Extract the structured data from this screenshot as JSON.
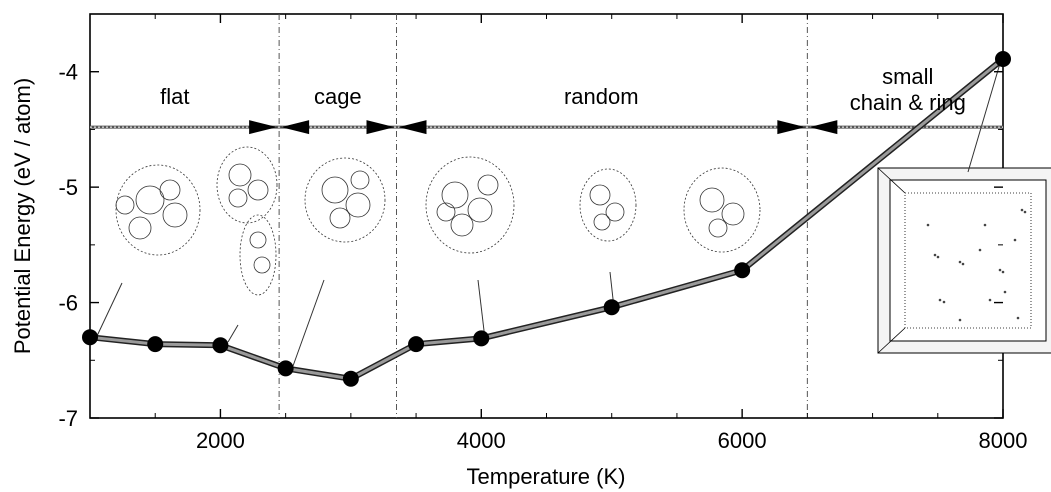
{
  "chart_data": {
    "type": "line",
    "xlabel": "Temperature (K)",
    "ylabel": "Potential Energy (eV / atom)",
    "xlim": [
      1000,
      8000
    ],
    "ylim": [
      -7,
      -3.5
    ],
    "xticks": [
      2000,
      4000,
      6000,
      8000
    ],
    "xtick_labels": [
      "2000",
      "4000",
      "6000",
      "8000"
    ],
    "yticks": [
      -7,
      -6,
      -5,
      -4
    ],
    "ytick_labels": [
      "-7",
      "-6",
      "-5",
      "-4"
    ],
    "grid": false,
    "series": [
      {
        "x": [
          1000,
          1500,
          2000,
          2500,
          3000,
          3500,
          4000,
          5000,
          6000,
          8000
        ],
        "y": [
          -6.3,
          -6.36,
          -6.37,
          -6.57,
          -6.66,
          -6.36,
          -6.31,
          -6.04,
          -5.72,
          -3.89
        ]
      }
    ],
    "phase_boundaries": [
      2450,
      3350,
      6500
    ],
    "phase_line_y": -4.48,
    "regions": [
      {
        "label_lines": [
          "flat"
        ],
        "x": 1650
      },
      {
        "label_lines": [
          "cage"
        ],
        "x": 2900
      },
      {
        "label_lines": [
          "random"
        ],
        "x": 4920
      },
      {
        "label_lines": [
          "small",
          "chain & ring"
        ],
        "x": 7270
      }
    ]
  }
}
